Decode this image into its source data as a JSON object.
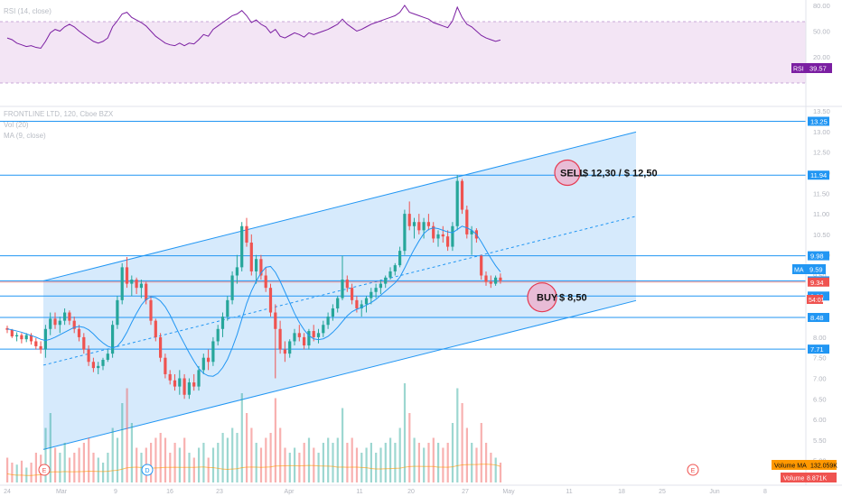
{
  "chart_data": {
    "type": "candlestick",
    "symbol_legend": "FRONTLINE LTD, 120, Cboe BZX",
    "indicators": {
      "vol": "Vol (20)",
      "ma": "MA (9, close)",
      "rsi": "RSI (14, close)"
    },
    "price_ticks": [
      "13.50",
      "13.00",
      "12.50",
      "12.00",
      "11.50",
      "11.00",
      "10.50",
      "10.00",
      "9.50",
      "9.00",
      "8.50",
      "8.00",
      "7.50",
      "7.00",
      "6.50",
      "6.00",
      "5.50",
      "5.00"
    ],
    "rsi_ticks": [
      "80.00",
      "50.00",
      "20.00"
    ],
    "x_ticks": [
      "24",
      "Mar",
      "9",
      "16",
      "23",
      "Apr",
      "11",
      "20",
      "27",
      "May",
      "11",
      "18",
      "25",
      "Jun",
      "8"
    ],
    "ohlc": [
      [
        8.22,
        8.28,
        8.1,
        8.18
      ],
      [
        8.18,
        8.2,
        7.98,
        8.02
      ],
      [
        8.02,
        8.12,
        7.9,
        8.05
      ],
      [
        8.05,
        8.1,
        7.85,
        7.95
      ],
      [
        7.95,
        8.1,
        7.88,
        8.05
      ],
      [
        8.05,
        8.1,
        7.82,
        7.9
      ],
      [
        7.9,
        7.98,
        7.7,
        7.78
      ],
      [
        7.78,
        7.9,
        7.6,
        7.7
      ],
      [
        7.7,
        8.3,
        7.5,
        8.2
      ],
      [
        8.2,
        8.6,
        8.05,
        8.45
      ],
      [
        8.45,
        8.6,
        8.2,
        8.3
      ],
      [
        8.3,
        8.5,
        8.1,
        8.4
      ],
      [
        8.4,
        8.7,
        8.3,
        8.6
      ],
      [
        8.6,
        8.65,
        8.3,
        8.4
      ],
      [
        8.4,
        8.5,
        8.1,
        8.2
      ],
      [
        8.2,
        8.3,
        7.9,
        8.0
      ],
      [
        8.0,
        8.1,
        7.6,
        7.7
      ],
      [
        7.7,
        7.8,
        7.3,
        7.4
      ],
      [
        7.4,
        7.5,
        7.15,
        7.25
      ],
      [
        7.25,
        7.4,
        7.1,
        7.3
      ],
      [
        7.3,
        7.5,
        7.2,
        7.45
      ],
      [
        7.45,
        7.7,
        7.4,
        7.6
      ],
      [
        7.6,
        8.4,
        7.5,
        8.3
      ],
      [
        8.3,
        9.0,
        8.2,
        8.9
      ],
      [
        8.9,
        9.8,
        8.8,
        9.7
      ],
      [
        9.7,
        9.95,
        9.2,
        9.3
      ],
      [
        9.3,
        9.5,
        9.0,
        9.4
      ],
      [
        9.4,
        9.45,
        9.05,
        9.2
      ],
      [
        9.2,
        9.4,
        8.95,
        9.3
      ],
      [
        9.3,
        9.35,
        8.8,
        8.9
      ],
      [
        8.9,
        9.0,
        8.3,
        8.4
      ],
      [
        8.4,
        8.45,
        7.9,
        8.0
      ],
      [
        8.0,
        8.1,
        7.4,
        7.5
      ],
      [
        7.5,
        7.6,
        7.0,
        7.1
      ],
      [
        7.1,
        7.2,
        6.85,
        6.95
      ],
      [
        6.95,
        7.1,
        6.7,
        6.8
      ],
      [
        6.8,
        7.2,
        6.6,
        7.0
      ],
      [
        7.0,
        7.1,
        6.5,
        6.6
      ],
      [
        6.6,
        7.0,
        6.5,
        6.9
      ],
      [
        6.9,
        7.1,
        6.7,
        6.8
      ],
      [
        6.8,
        7.3,
        6.7,
        7.2
      ],
      [
        7.2,
        7.6,
        7.1,
        7.5
      ],
      [
        7.5,
        7.7,
        7.2,
        7.4
      ],
      [
        7.4,
        8.0,
        7.3,
        7.9
      ],
      [
        7.9,
        8.3,
        7.8,
        8.2
      ],
      [
        8.2,
        8.6,
        8.0,
        8.5
      ],
      [
        8.5,
        9.0,
        8.4,
        8.9
      ],
      [
        8.9,
        9.6,
        8.8,
        9.5
      ],
      [
        9.5,
        10.0,
        9.3,
        9.7
      ],
      [
        9.7,
        10.8,
        9.6,
        10.7
      ],
      [
        10.7,
        10.9,
        10.2,
        10.3
      ],
      [
        10.3,
        10.5,
        9.5,
        9.6
      ],
      [
        9.6,
        10.0,
        9.3,
        9.9
      ],
      [
        9.9,
        10.0,
        9.4,
        9.5
      ],
      [
        9.5,
        9.7,
        9.1,
        9.2
      ],
      [
        9.2,
        9.3,
        8.5,
        8.6
      ],
      [
        8.6,
        8.8,
        7.0,
        8.2
      ],
      [
        8.2,
        8.4,
        7.6,
        7.7
      ],
      [
        7.7,
        7.9,
        7.4,
        7.6
      ],
      [
        7.6,
        7.95,
        7.5,
        7.9
      ],
      [
        7.9,
        8.2,
        7.8,
        8.1
      ],
      [
        8.1,
        8.3,
        7.9,
        8.0
      ],
      [
        8.0,
        8.1,
        7.7,
        7.8
      ],
      [
        7.8,
        8.2,
        7.7,
        8.15
      ],
      [
        8.15,
        8.3,
        7.9,
        8.0
      ],
      [
        8.0,
        8.2,
        7.85,
        8.1
      ],
      [
        8.1,
        8.4,
        8.0,
        8.3
      ],
      [
        8.3,
        8.6,
        8.2,
        8.5
      ],
      [
        8.5,
        8.8,
        8.4,
        8.7
      ],
      [
        8.7,
        9.0,
        8.6,
        8.95
      ],
      [
        8.95,
        9.98,
        8.9,
        9.4
      ],
      [
        9.4,
        9.5,
        9.1,
        9.2
      ],
      [
        9.2,
        9.3,
        8.8,
        8.9
      ],
      [
        8.9,
        9.0,
        8.6,
        8.7
      ],
      [
        8.7,
        8.9,
        8.5,
        8.8
      ],
      [
        8.8,
        9.0,
        8.6,
        8.95
      ],
      [
        8.95,
        9.2,
        8.8,
        9.1
      ],
      [
        9.1,
        9.3,
        8.95,
        9.2
      ],
      [
        9.2,
        9.4,
        9.05,
        9.3
      ],
      [
        9.3,
        9.5,
        9.2,
        9.45
      ],
      [
        9.45,
        9.7,
        9.4,
        9.6
      ],
      [
        9.6,
        9.8,
        9.5,
        9.75
      ],
      [
        9.75,
        10.2,
        9.7,
        10.1
      ],
      [
        10.1,
        11.1,
        10.0,
        11.0
      ],
      [
        11.0,
        11.3,
        10.6,
        10.7
      ],
      [
        10.7,
        10.9,
        10.4,
        10.8
      ],
      [
        10.8,
        11.0,
        10.5,
        10.6
      ],
      [
        10.6,
        10.9,
        10.4,
        10.8
      ],
      [
        10.8,
        11.0,
        10.6,
        10.7
      ],
      [
        10.7,
        10.8,
        10.3,
        10.4
      ],
      [
        10.4,
        10.6,
        10.2,
        10.5
      ],
      [
        10.5,
        10.7,
        10.3,
        10.45
      ],
      [
        10.45,
        10.6,
        10.1,
        10.2
      ],
      [
        10.2,
        10.8,
        10.1,
        10.7
      ],
      [
        10.7,
        11.94,
        10.6,
        11.8
      ],
      [
        11.8,
        11.85,
        11.0,
        11.1
      ],
      [
        11.1,
        11.2,
        10.4,
        10.5
      ],
      [
        10.5,
        10.7,
        10.0,
        10.6
      ],
      [
        10.6,
        10.65,
        10.3,
        10.4
      ],
      [
        9.98,
        10.0,
        9.4,
        9.5
      ],
      [
        9.5,
        9.6,
        9.25,
        9.35
      ],
      [
        9.35,
        9.5,
        9.2,
        9.3
      ],
      [
        9.3,
        9.5,
        9.25,
        9.45
      ],
      [
        9.45,
        9.55,
        9.3,
        9.37
      ]
    ],
    "ma": [
      8.2,
      8.18,
      8.15,
      8.12,
      8.08,
      8.04,
      8.0,
      7.95,
      7.92,
      7.95,
      8.0,
      8.06,
      8.12,
      8.18,
      8.24,
      8.26,
      8.24,
      8.18,
      8.08,
      7.96,
      7.86,
      7.78,
      7.74,
      7.78,
      7.92,
      8.12,
      8.36,
      8.58,
      8.78,
      8.92,
      8.98,
      8.96,
      8.88,
      8.74,
      8.54,
      8.3,
      8.06,
      7.84,
      7.62,
      7.42,
      7.24,
      7.12,
      7.06,
      7.05,
      7.12,
      7.26,
      7.46,
      7.74,
      8.06,
      8.44,
      8.82,
      9.12,
      9.36,
      9.56,
      9.7,
      9.72,
      9.58,
      9.36,
      9.1,
      8.84,
      8.58,
      8.36,
      8.18,
      8.04,
      7.96,
      7.94,
      7.96,
      8.02,
      8.12,
      8.24,
      8.38,
      8.52,
      8.62,
      8.68,
      8.72,
      8.78,
      8.84,
      8.92,
      9.02,
      9.12,
      9.22,
      9.32,
      9.46,
      9.68,
      9.92,
      10.14,
      10.34,
      10.52,
      10.62,
      10.66,
      10.64,
      10.6,
      10.56,
      10.54,
      10.62,
      10.7,
      10.66,
      10.6,
      10.5,
      10.32,
      10.12,
      9.92,
      9.74,
      9.59
    ],
    "volume": [
      0.25,
      0.2,
      0.18,
      0.22,
      0.15,
      0.2,
      0.3,
      0.28,
      0.55,
      0.7,
      0.35,
      0.3,
      0.4,
      0.25,
      0.3,
      0.35,
      0.4,
      0.45,
      0.3,
      0.25,
      0.2,
      0.3,
      0.55,
      0.45,
      0.8,
      0.95,
      0.6,
      0.35,
      0.3,
      0.35,
      0.4,
      0.45,
      0.5,
      0.45,
      0.3,
      0.4,
      0.35,
      0.45,
      0.3,
      0.25,
      0.35,
      0.4,
      0.25,
      0.35,
      0.4,
      0.5,
      0.45,
      0.55,
      0.5,
      0.9,
      0.7,
      0.55,
      0.4,
      0.35,
      0.45,
      0.5,
      0.85,
      0.55,
      0.35,
      0.3,
      0.35,
      0.3,
      0.4,
      0.45,
      0.35,
      0.3,
      0.4,
      0.45,
      0.4,
      0.45,
      0.75,
      0.4,
      0.45,
      0.35,
      0.3,
      0.35,
      0.4,
      0.3,
      0.35,
      0.4,
      0.45,
      0.4,
      0.55,
      1.0,
      0.7,
      0.45,
      0.4,
      0.35,
      0.4,
      0.45,
      0.4,
      0.35,
      0.4,
      0.6,
      0.95,
      0.8,
      0.55,
      0.4,
      0.35,
      0.6,
      0.4,
      0.3,
      0.25,
      0.2
    ],
    "rsi": [
      42,
      40,
      36,
      34,
      32,
      33,
      31,
      30,
      38,
      48,
      52,
      50,
      55,
      58,
      55,
      50,
      46,
      42,
      38,
      36,
      38,
      42,
      55,
      62,
      70,
      72,
      66,
      63,
      60,
      56,
      50,
      44,
      40,
      36,
      34,
      33,
      36,
      33,
      36,
      35,
      40,
      46,
      44,
      52,
      56,
      60,
      64,
      68,
      70,
      74,
      68,
      60,
      63,
      58,
      55,
      48,
      52,
      44,
      42,
      45,
      48,
      46,
      43,
      48,
      46,
      48,
      50,
      52,
      55,
      58,
      64,
      58,
      54,
      50,
      52,
      55,
      58,
      60,
      62,
      64,
      66,
      68,
      72,
      80,
      72,
      70,
      68,
      66,
      64,
      60,
      58,
      56,
      54,
      62,
      78,
      66,
      58,
      55,
      50,
      45,
      42,
      40,
      38,
      39.57
    ],
    "channel": {
      "upper": {
        "from": [
          "Mar",
          9.37
        ],
        "to": [
          "Jun",
          12.99
        ]
      },
      "lower": {
        "from": [
          "Mar",
          5.27
        ],
        "to": [
          "Jun",
          8.89
        ]
      },
      "mid": {
        "from": [
          "Mar",
          7.32
        ],
        "to": [
          "Jun",
          10.94
        ]
      }
    },
    "horizontal_levels": [
      {
        "price": 13.25,
        "label": "13.25"
      },
      {
        "price": 11.94,
        "label": "11.94"
      },
      {
        "price": 9.98,
        "label": "9.98"
      },
      {
        "price": 9.37,
        "label": "9.37"
      },
      {
        "price": 9.34,
        "label": "9.34"
      },
      {
        "price": 9.0,
        "label": "9.00"
      },
      {
        "price": 8.48,
        "label": "8.48"
      },
      {
        "price": 7.71,
        "label": "7.71"
      }
    ],
    "countdown_label": "54:01",
    "ma_tag": {
      "name": "MA",
      "value": "9.59"
    },
    "rsi_tag": {
      "name": "RSI",
      "value": "39.57"
    },
    "volume_tags": [
      {
        "label": "Volume MA",
        "value": "132.059K"
      },
      {
        "label": "Volume",
        "value": "8.871K"
      }
    ],
    "annotations": [
      {
        "label": "SELL",
        "text": "$ 12,30 / $ 12,50",
        "at": [
          "Apr",
          12.0
        ]
      },
      {
        "label": "BUY",
        "text": "$ 8,50",
        "at": [
          "May",
          8.97
        ]
      }
    ],
    "event_markers": [
      "E",
      "D",
      "E"
    ],
    "colors": {
      "up": "#26a69a",
      "down": "#ef5350",
      "channel_fill": "#cfe6fb",
      "channel_line": "#2196f3",
      "level_line": "#2196f3",
      "rsi_line": "#7b1fa2",
      "rsi_band": "#f3e5f5",
      "ma_line": "#2196f3",
      "volume_ma": "#ff9800",
      "marker_fill": "#e8bcd6",
      "marker_stroke": "#e53950"
    }
  }
}
